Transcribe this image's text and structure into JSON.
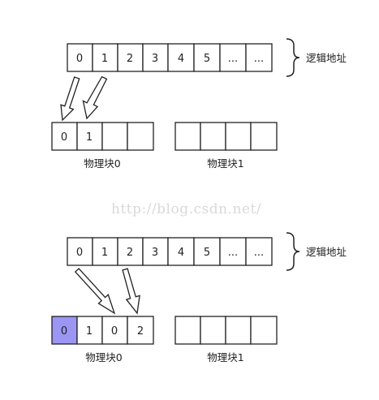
{
  "watermark": "http://blog.csdn.net/",
  "colors": {
    "highlight": "#9b96f3",
    "stroke": "#222222"
  },
  "top": {
    "logical_cells": [
      "0",
      "1",
      "2",
      "3",
      "4",
      "5",
      "...",
      "..."
    ],
    "logical_label": "逻辑地址",
    "block0_cells": [
      "0",
      "1",
      "",
      ""
    ],
    "block1_cells": [
      "",
      "",
      "",
      ""
    ],
    "block0_label": "物理块0",
    "block1_label": "物理块1"
  },
  "bottom": {
    "logical_cells": [
      "0",
      "1",
      "2",
      "3",
      "4",
      "5",
      "...",
      "..."
    ],
    "logical_label": "逻辑地址",
    "block0_cells": [
      "0",
      "1",
      "0",
      "2"
    ],
    "block1_cells": [
      "",
      "",
      "",
      ""
    ],
    "block0_label": "物理块0",
    "block1_label": "物理块1"
  }
}
